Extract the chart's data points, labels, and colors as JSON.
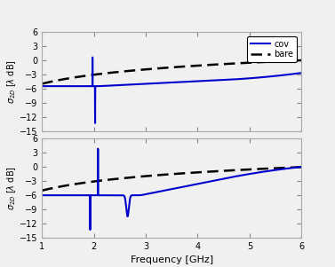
{
  "xlim": [
    1,
    6
  ],
  "ylim": [
    -15,
    6
  ],
  "xticks": [
    1,
    2,
    3,
    4,
    5,
    6
  ],
  "yticks": [
    -15,
    -12,
    -9,
    -6,
    -3,
    0,
    3,
    6
  ],
  "xlabel": "Frequency [GHz]",
  "ylabel": "$\\sigma_{2D}$ [$\\lambda$ dB]",
  "cov_color": "#0000cc",
  "bare_color": "#000000",
  "cov_lw": 1.5,
  "bare_lw": 1.8,
  "background_color": "#f0f0f0"
}
